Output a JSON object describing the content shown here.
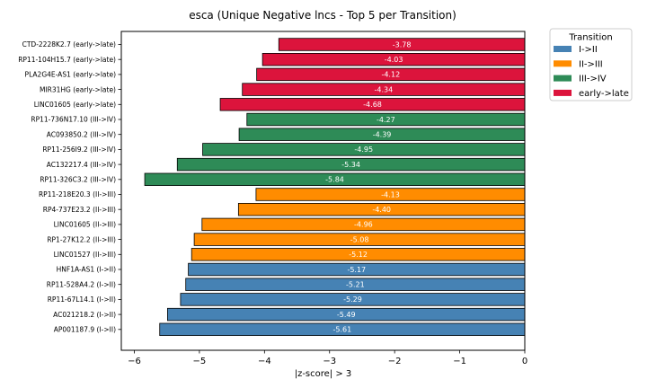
{
  "chart_data": {
    "type": "bar",
    "orientation": "horizontal",
    "title": "esca (Unique Negative lncs - Top 5 per Transition)",
    "xlabel": "|z-score| > 3",
    "ylabel": "",
    "xlim": [
      -6.2,
      0
    ],
    "xticks": [
      -6,
      -5,
      -4,
      -3,
      -2,
      -1,
      0
    ],
    "xtick_labels": [
      "−6",
      "−5",
      "−4",
      "−3",
      "−2",
      "−1",
      "0"
    ],
    "grid": false,
    "legend": {
      "title": "Transition",
      "placement": "outside-top-right",
      "entries": [
        {
          "label": "I->II",
          "color": "#4682b4"
        },
        {
          "label": "II->III",
          "color": "#ff8c00"
        },
        {
          "label": "III->IV",
          "color": "#2e8b57"
        },
        {
          "label": "early->late",
          "color": "#dc143c"
        }
      ]
    },
    "bars": [
      {
        "category": "CTD-2228K2.7 (early->late)",
        "value": -3.78,
        "label": "-3.78",
        "group": "early->late"
      },
      {
        "category": "RP11-104H15.7 (early->late)",
        "value": -4.03,
        "label": "-4.03",
        "group": "early->late"
      },
      {
        "category": "PLA2G4E-AS1 (early->late)",
        "value": -4.12,
        "label": "-4.12",
        "group": "early->late"
      },
      {
        "category": "MIR31HG (early->late)",
        "value": -4.34,
        "label": "-4.34",
        "group": "early->late"
      },
      {
        "category": "LINC01605 (early->late)",
        "value": -4.68,
        "label": "-4.68",
        "group": "early->late"
      },
      {
        "category": "RP11-736N17.10 (III->IV)",
        "value": -4.27,
        "label": "-4.27",
        "group": "III->IV"
      },
      {
        "category": "AC093850.2 (III->IV)",
        "value": -4.39,
        "label": "-4.39",
        "group": "III->IV"
      },
      {
        "category": "RP11-256I9.2 (III->IV)",
        "value": -4.95,
        "label": "-4.95",
        "group": "III->IV"
      },
      {
        "category": "AC132217.4 (III->IV)",
        "value": -5.34,
        "label": "-5.34",
        "group": "III->IV"
      },
      {
        "category": "RP11-326C3.2 (III->IV)",
        "value": -5.84,
        "label": "-5.84",
        "group": "III->IV"
      },
      {
        "category": "RP11-218E20.3 (II->III)",
        "value": -4.13,
        "label": "-4.13",
        "group": "II->III"
      },
      {
        "category": "RP4-737E23.2 (II->III)",
        "value": -4.4,
        "label": "-4.40",
        "group": "II->III"
      },
      {
        "category": "LINC01605 (II->III)",
        "value": -4.96,
        "label": "-4.96",
        "group": "II->III"
      },
      {
        "category": "RP1-27K12.2 (II->III)",
        "value": -5.08,
        "label": "-5.08",
        "group": "II->III"
      },
      {
        "category": "LINC01527 (II->III)",
        "value": -5.12,
        "label": "-5.12",
        "group": "II->III"
      },
      {
        "category": "HNF1A-AS1 (I->II)",
        "value": -5.17,
        "label": "-5.17",
        "group": "I->II"
      },
      {
        "category": "RP11-528A4.2 (I->II)",
        "value": -5.21,
        "label": "-5.21",
        "group": "I->II"
      },
      {
        "category": "RP11-67L14.1 (I->II)",
        "value": -5.29,
        "label": "-5.29",
        "group": "I->II"
      },
      {
        "category": "AC021218.2 (I->II)",
        "value": -5.49,
        "label": "-5.49",
        "group": "I->II"
      },
      {
        "category": "AP001187.9 (I->II)",
        "value": -5.61,
        "label": "-5.61",
        "group": "I->II"
      }
    ]
  }
}
